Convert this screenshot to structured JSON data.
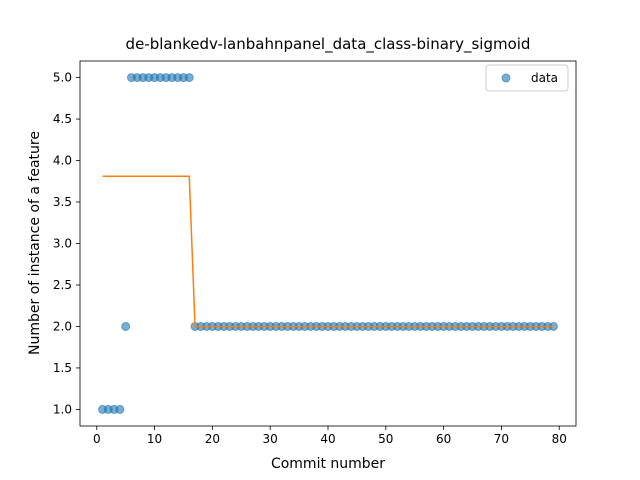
{
  "chart_data": {
    "type": "scatter",
    "title": "de-blankedv-lanbahnpanel_data_class-binary_sigmoid",
    "xlabel": "Commit number",
    "ylabel": "Number of instance of a feature",
    "xlim": [
      -2.9,
      82.9
    ],
    "ylim": [
      0.8,
      5.2
    ],
    "xticks": [
      "0",
      "10",
      "20",
      "30",
      "40",
      "50",
      "60",
      "70",
      "80"
    ],
    "yticks": [
      "1.0",
      "1.5",
      "2.0",
      "2.5",
      "3.0",
      "3.5",
      "4.0",
      "4.5",
      "5.0"
    ],
    "grid": false,
    "legend_position": "top-right",
    "series": [
      {
        "name": "data",
        "kind": "scatter",
        "color": "#1f77b4",
        "x": [
          1,
          2,
          3,
          4,
          5,
          6,
          7,
          8,
          9,
          10,
          11,
          12,
          13,
          14,
          15,
          16,
          17,
          18,
          19,
          20,
          21,
          22,
          23,
          24,
          25,
          26,
          27,
          28,
          29,
          30,
          31,
          32,
          33,
          34,
          35,
          36,
          37,
          38,
          39,
          40,
          41,
          42,
          43,
          44,
          45,
          46,
          47,
          48,
          49,
          50,
          51,
          52,
          53,
          54,
          55,
          56,
          57,
          58,
          59,
          60,
          61,
          62,
          63,
          64,
          65,
          66,
          67,
          68,
          69,
          70,
          71,
          72,
          73,
          74,
          75,
          76,
          77,
          78,
          79
        ],
        "y": [
          1,
          1,
          1,
          1,
          2,
          5,
          5,
          5,
          5,
          5,
          5,
          5,
          5,
          5,
          5,
          5,
          2,
          2,
          2,
          2,
          2,
          2,
          2,
          2,
          2,
          2,
          2,
          2,
          2,
          2,
          2,
          2,
          2,
          2,
          2,
          2,
          2,
          2,
          2,
          2,
          2,
          2,
          2,
          2,
          2,
          2,
          2,
          2,
          2,
          2,
          2,
          2,
          2,
          2,
          2,
          2,
          2,
          2,
          2,
          2,
          2,
          2,
          2,
          2,
          2,
          2,
          2,
          2,
          2,
          2,
          2,
          2,
          2,
          2,
          2,
          2,
          2,
          2,
          2
        ]
      },
      {
        "kind": "line",
        "color": "#ff7f0e",
        "x": [
          1,
          16,
          17,
          79
        ],
        "y": [
          3.81,
          3.81,
          2.0,
          2.0
        ]
      }
    ]
  }
}
